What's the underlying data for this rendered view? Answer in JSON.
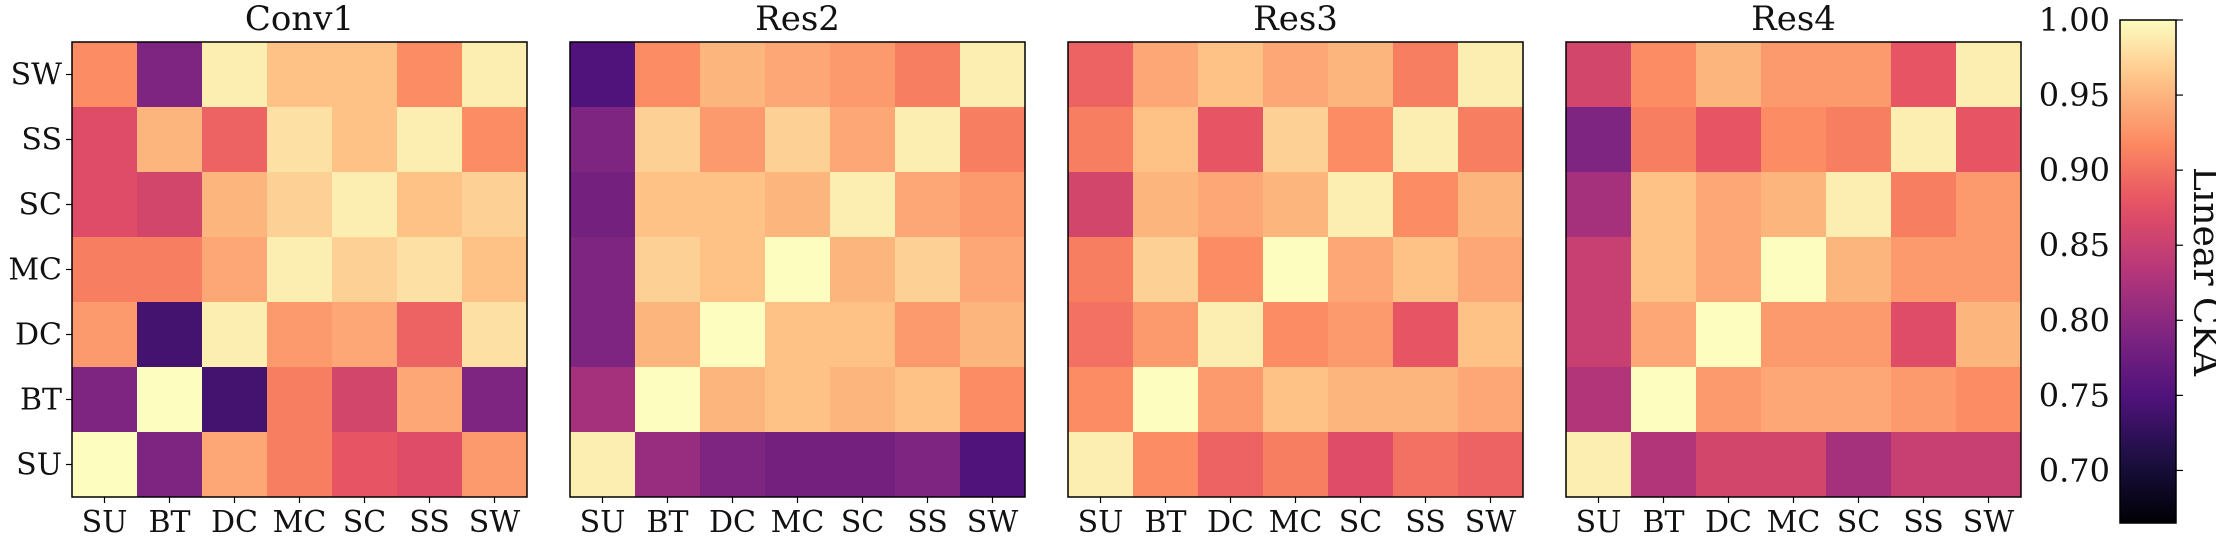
{
  "chart_data": [
    {
      "type": "heatmap",
      "title": "Conv1",
      "x_categories": [
        "SU",
        "BT",
        "DC",
        "MC",
        "SC",
        "SS",
        "SW"
      ],
      "y_categories": [
        "SW",
        "SS",
        "SC",
        "MC",
        "DC",
        "BT",
        "SU"
      ],
      "values": [
        [
          0.92,
          0.79,
          0.99,
          0.96,
          0.96,
          0.92,
          0.99
        ],
        [
          0.87,
          0.95,
          0.89,
          0.98,
          0.96,
          0.99,
          0.92
        ],
        [
          0.87,
          0.86,
          0.95,
          0.97,
          0.99,
          0.96,
          0.97
        ],
        [
          0.91,
          0.91,
          0.94,
          0.99,
          0.97,
          0.98,
          0.96
        ],
        [
          0.93,
          0.74,
          0.99,
          0.93,
          0.94,
          0.89,
          0.98
        ],
        [
          0.79,
          1.0,
          0.74,
          0.91,
          0.86,
          0.94,
          0.79
        ],
        [
          1.0,
          0.79,
          0.94,
          0.91,
          0.88,
          0.87,
          0.93
        ]
      ]
    },
    {
      "type": "heatmap",
      "title": "Res2",
      "x_categories": [
        "SU",
        "BT",
        "DC",
        "MC",
        "SC",
        "SS",
        "SW"
      ],
      "y_categories": [
        "SW",
        "SS",
        "SC",
        "MC",
        "DC",
        "BT",
        "SU"
      ],
      "values": [
        [
          0.75,
          0.92,
          0.95,
          0.94,
          0.93,
          0.91,
          0.99
        ],
        [
          0.79,
          0.97,
          0.93,
          0.97,
          0.94,
          0.99,
          0.91
        ],
        [
          0.78,
          0.96,
          0.96,
          0.95,
          0.99,
          0.94,
          0.93
        ],
        [
          0.79,
          0.97,
          0.96,
          1.0,
          0.95,
          0.97,
          0.94
        ],
        [
          0.79,
          0.95,
          1.0,
          0.96,
          0.96,
          0.93,
          0.95
        ],
        [
          0.82,
          1.0,
          0.95,
          0.96,
          0.95,
          0.96,
          0.92
        ],
        [
          0.99,
          0.81,
          0.79,
          0.78,
          0.78,
          0.79,
          0.75
        ]
      ]
    },
    {
      "type": "heatmap",
      "title": "Res3",
      "x_categories": [
        "SU",
        "BT",
        "DC",
        "MC",
        "SC",
        "SS",
        "SW"
      ],
      "y_categories": [
        "SW",
        "SS",
        "SC",
        "MC",
        "DC",
        "BT",
        "SU"
      ],
      "values": [
        [
          0.89,
          0.94,
          0.96,
          0.94,
          0.95,
          0.91,
          0.99
        ],
        [
          0.91,
          0.96,
          0.88,
          0.97,
          0.92,
          0.99,
          0.91
        ],
        [
          0.86,
          0.95,
          0.94,
          0.95,
          0.99,
          0.92,
          0.95
        ],
        [
          0.91,
          0.97,
          0.92,
          1.0,
          0.94,
          0.96,
          0.94
        ],
        [
          0.9,
          0.93,
          0.99,
          0.92,
          0.93,
          0.88,
          0.96
        ],
        [
          0.92,
          1.0,
          0.93,
          0.96,
          0.95,
          0.95,
          0.94
        ],
        [
          0.99,
          0.92,
          0.89,
          0.91,
          0.87,
          0.9,
          0.89
        ]
      ]
    },
    {
      "type": "heatmap",
      "title": "Res4",
      "x_categories": [
        "SU",
        "BT",
        "DC",
        "MC",
        "SC",
        "SS",
        "SW"
      ],
      "y_categories": [
        "SW",
        "SS",
        "SC",
        "MC",
        "DC",
        "BT",
        "SU"
      ],
      "values": [
        [
          0.86,
          0.92,
          0.95,
          0.93,
          0.93,
          0.88,
          0.99
        ],
        [
          0.79,
          0.91,
          0.88,
          0.92,
          0.91,
          0.99,
          0.88
        ],
        [
          0.82,
          0.96,
          0.94,
          0.95,
          0.99,
          0.91,
          0.93
        ],
        [
          0.85,
          0.96,
          0.94,
          1.0,
          0.95,
          0.93,
          0.93
        ],
        [
          0.85,
          0.94,
          1.0,
          0.93,
          0.93,
          0.87,
          0.95
        ],
        [
          0.83,
          1.0,
          0.93,
          0.94,
          0.94,
          0.93,
          0.92
        ],
        [
          0.99,
          0.83,
          0.86,
          0.86,
          0.82,
          0.85,
          0.85
        ]
      ]
    }
  ],
  "colorbar": {
    "label": "Linear CKA",
    "colormap": "magma",
    "min": 0.665,
    "max": 1.0,
    "ticks": [
      "0.70",
      "0.75",
      "0.80",
      "0.85",
      "0.90",
      "0.95",
      "1.00"
    ]
  }
}
